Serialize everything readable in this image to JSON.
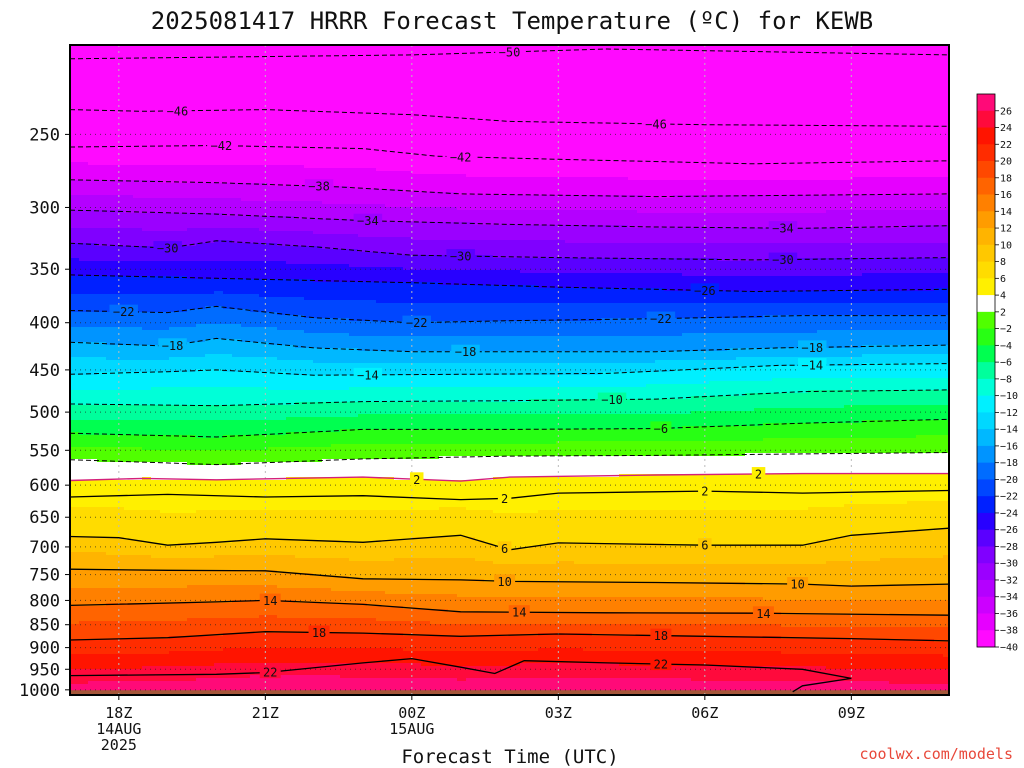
{
  "chart_data": {
    "type": "heatmap",
    "title": "2025081417 HRRR Forecast Temperature (ºC) for KEWB",
    "xlabel": "Forecast Time (UTC)",
    "ylabel": "",
    "credit": "coolwx.com/models",
    "x_ticks": [
      {
        "hour": 1,
        "line1": "18Z",
        "line2": "14AUG",
        "line3": "2025"
      },
      {
        "hour": 4,
        "line1": "21Z",
        "line2": "",
        "line3": ""
      },
      {
        "hour": 7,
        "line1": "00Z",
        "line2": "15AUG",
        "line3": ""
      },
      {
        "hour": 10,
        "line1": "03Z",
        "line2": "",
        "line3": ""
      },
      {
        "hour": 13,
        "line1": "06Z",
        "line2": "",
        "line3": ""
      },
      {
        "hour": 16,
        "line1": "09Z",
        "line2": "",
        "line3": ""
      }
    ],
    "xlim_hours": [
      0,
      18
    ],
    "y_ticks": [
      "250",
      "300",
      "350",
      "400",
      "450",
      "500",
      "550",
      "600",
      "650",
      "700",
      "750",
      "800",
      "850",
      "900",
      "950",
      "1000"
    ],
    "ylim_hPa": [
      1013,
      200
    ],
    "y_scale": "log",
    "grid": true,
    "colorbar": {
      "levels": [
        -40,
        -38,
        -36,
        -34,
        -32,
        -30,
        -28,
        -26,
        -24,
        -22,
        -20,
        -18,
        -16,
        -14,
        -12,
        -10,
        -8,
        -6,
        -4,
        -2,
        2,
        4,
        6,
        8,
        10,
        12,
        14,
        16,
        18,
        20,
        22,
        24,
        26
      ],
      "labels": [
        "26",
        "24",
        "22",
        "20",
        "18",
        "16",
        "14",
        "12",
        "10",
        "8",
        "6",
        "4",
        "2",
        "−2",
        "−4",
        "−6",
        "−8",
        "−10",
        "−12",
        "−14",
        "−16",
        "−18",
        "−20",
        "−22",
        "−24",
        "−26",
        "−28",
        "−30",
        "−32",
        "−34",
        "−36",
        "−38",
        "−40"
      ],
      "colors": [
        "#ff0aff",
        "#e600ff",
        "#cc00ff",
        "#b400ff",
        "#9b00ff",
        "#8000ff",
        "#5a00ff",
        "#2800ff",
        "#0020ff",
        "#0046ff",
        "#006cff",
        "#0094ff",
        "#00b8ff",
        "#00d8ff",
        "#00f0ff",
        "#00ffd8",
        "#00ff9c",
        "#00ff50",
        "#28ff14",
        "#50ff00",
        "#ffffff",
        "#fff000",
        "#ffdc00",
        "#ffc800",
        "#ffb400",
        "#ff9c00",
        "#ff8000",
        "#ff6400",
        "#ff4800",
        "#ff2c00",
        "#ff1400",
        "#ff0a3c",
        "#ff0a78"
      ]
    },
    "series": [
      {
        "temp": -50,
        "label": "−50",
        "points": [
          [
            0,
            207
          ],
          [
            7,
            205
          ],
          [
            11,
            202
          ],
          [
            18,
            205
          ]
        ]
      },
      {
        "temp": -46,
        "label": "−46",
        "points": [
          [
            0,
            235
          ],
          [
            1.5,
            236
          ],
          [
            4,
            235
          ],
          [
            7,
            238
          ],
          [
            9,
            242
          ],
          [
            13,
            244
          ],
          [
            18,
            245
          ]
        ]
      },
      {
        "temp": -42,
        "label": "−42",
        "points": [
          [
            0,
            258
          ],
          [
            3,
            257
          ],
          [
            6,
            259
          ],
          [
            7.5,
            264
          ],
          [
            10,
            266
          ],
          [
            14,
            269
          ],
          [
            18,
            267
          ]
        ]
      },
      {
        "temp": -38,
        "label": "−38",
        "points": [
          [
            0,
            280
          ],
          [
            3,
            282
          ],
          [
            5.5,
            285
          ],
          [
            8,
            290
          ],
          [
            12,
            292
          ],
          [
            18,
            290
          ]
        ]
      },
      {
        "temp": -34,
        "label": "−34",
        "points": [
          [
            0,
            302
          ],
          [
            3,
            305
          ],
          [
            6,
            310
          ],
          [
            9,
            313
          ],
          [
            12,
            315
          ],
          [
            15,
            316
          ],
          [
            18,
            314
          ]
        ]
      },
      {
        "temp": -30,
        "label": "−30",
        "points": [
          [
            0,
            328
          ],
          [
            2,
            332
          ],
          [
            3,
            326
          ],
          [
            5,
            331
          ],
          [
            7,
            338
          ],
          [
            10,
            340
          ],
          [
            14,
            342
          ],
          [
            18,
            340
          ]
        ]
      },
      {
        "temp": -26,
        "label": "−26",
        "points": [
          [
            0,
            355
          ],
          [
            3,
            358
          ],
          [
            7,
            362
          ],
          [
            10,
            366
          ],
          [
            14,
            370
          ],
          [
            18,
            368
          ]
        ]
      },
      {
        "temp": -22,
        "label": "−22",
        "points": [
          [
            0,
            388
          ],
          [
            2,
            390
          ],
          [
            3,
            384
          ],
          [
            5,
            395
          ],
          [
            7,
            400
          ],
          [
            9,
            398
          ],
          [
            12,
            396
          ],
          [
            15,
            393
          ],
          [
            18,
            393
          ]
        ]
      },
      {
        "temp": -18,
        "label": "−18",
        "points": [
          [
            0,
            420
          ],
          [
            2,
            424
          ],
          [
            3,
            416
          ],
          [
            5,
            426
          ],
          [
            7,
            430
          ],
          [
            10,
            430
          ],
          [
            12,
            430
          ],
          [
            14.5,
            426
          ],
          [
            18,
            423
          ]
        ]
      },
      {
        "temp": -14,
        "label": "−14",
        "points": [
          [
            0,
            455
          ],
          [
            2,
            452
          ],
          [
            3,
            450
          ],
          [
            5,
            456
          ],
          [
            8,
            455
          ],
          [
            11,
            454
          ],
          [
            14.5,
            445
          ],
          [
            18,
            443
          ]
        ]
      },
      {
        "temp": -10,
        "label": "−10",
        "points": [
          [
            0,
            490
          ],
          [
            3,
            492
          ],
          [
            6,
            487
          ],
          [
            9,
            486
          ],
          [
            12,
            484
          ],
          [
            15,
            475
          ],
          [
            18,
            473
          ]
        ]
      },
      {
        "temp": -6,
        "label": "−6",
        "points": [
          [
            0,
            527
          ],
          [
            3,
            532
          ],
          [
            6,
            522
          ],
          [
            9,
            522
          ],
          [
            12,
            521
          ],
          [
            15,
            514
          ],
          [
            18,
            509
          ]
        ]
      },
      {
        "temp": -2,
        "label": "−2",
        "points": [
          [
            0,
            563
          ],
          [
            3,
            570
          ],
          [
            6,
            562
          ],
          [
            9,
            558
          ],
          [
            12,
            557
          ],
          [
            15,
            555
          ],
          [
            18,
            553
          ]
        ]
      },
      {
        "temp": 2,
        "label": "2",
        "points": [
          [
            0,
            593
          ],
          [
            1.5,
            590
          ],
          [
            3,
            592
          ],
          [
            6,
            588
          ],
          [
            8,
            594
          ],
          [
            9,
            588
          ],
          [
            12,
            585
          ],
          [
            15,
            583
          ],
          [
            18,
            583
          ]
        ]
      },
      {
        "temp": 2,
        "label": "2",
        "points": [
          [
            0,
            618
          ],
          [
            2,
            614
          ],
          [
            4,
            618
          ],
          [
            6,
            616
          ],
          [
            8,
            622
          ],
          [
            9,
            620
          ],
          [
            10,
            612
          ],
          [
            13,
            609
          ],
          [
            15,
            612
          ],
          [
            18,
            608
          ]
        ]
      },
      {
        "temp": 6,
        "label": "6",
        "points": [
          [
            0,
            682
          ],
          [
            1,
            684
          ],
          [
            2,
            697
          ],
          [
            3,
            692
          ],
          [
            4,
            686
          ],
          [
            6,
            692
          ],
          [
            8,
            680
          ],
          [
            9,
            705
          ],
          [
            10,
            693
          ],
          [
            13,
            697
          ],
          [
            15,
            697
          ],
          [
            16,
            680
          ],
          [
            18,
            668
          ]
        ]
      },
      {
        "temp": 10,
        "label": "10",
        "points": [
          [
            0,
            740
          ],
          [
            2,
            742
          ],
          [
            4,
            743
          ],
          [
            6,
            758
          ],
          [
            8,
            760
          ],
          [
            9,
            763
          ],
          [
            12,
            765
          ],
          [
            15,
            768
          ],
          [
            16,
            772
          ],
          [
            18,
            768
          ]
        ]
      },
      {
        "temp": 14,
        "label": "14",
        "points": [
          [
            0,
            810
          ],
          [
            3,
            803
          ],
          [
            4,
            800
          ],
          [
            6,
            808
          ],
          [
            8,
            823
          ],
          [
            11,
            825
          ],
          [
            14,
            826
          ],
          [
            18,
            830
          ]
        ]
      },
      {
        "temp": 18,
        "label": "18",
        "points": [
          [
            0,
            883
          ],
          [
            2,
            878
          ],
          [
            4,
            865
          ],
          [
            6,
            868
          ],
          [
            8,
            875
          ],
          [
            10,
            870
          ],
          [
            13,
            875
          ],
          [
            16,
            880
          ],
          [
            18,
            885
          ]
        ]
      },
      {
        "temp": 22,
        "label": "22",
        "points": [
          [
            0,
            965
          ],
          [
            3,
            962
          ],
          [
            4,
            958
          ],
          [
            6,
            935
          ],
          [
            7,
            925
          ],
          [
            8,
            945
          ],
          [
            8.7,
            960
          ],
          [
            9.3,
            930
          ],
          [
            11,
            935
          ],
          [
            13,
            940
          ],
          [
            15,
            950
          ],
          [
            16,
            972
          ],
          [
            15,
            990
          ],
          [
            14.8,
            1005
          ]
        ]
      }
    ],
    "label_positions": [
      {
        "i": 0,
        "x": 9.0
      },
      {
        "i": 1,
        "x": 2.2
      },
      {
        "i": 1,
        "x": 12.0
      },
      {
        "i": 2,
        "x": 3.1
      },
      {
        "i": 2,
        "x": 8.0
      },
      {
        "i": 3,
        "x": 5.1
      },
      {
        "i": 4,
        "x": 6.1
      },
      {
        "i": 4,
        "x": 14.6
      },
      {
        "i": 5,
        "x": 2.0
      },
      {
        "i": 5,
        "x": 8.0
      },
      {
        "i": 5,
        "x": 14.6
      },
      {
        "i": 6,
        "x": 13.0
      },
      {
        "i": 7,
        "x": 1.1
      },
      {
        "i": 7,
        "x": 7.1
      },
      {
        "i": 7,
        "x": 12.1
      },
      {
        "i": 8,
        "x": 2.1
      },
      {
        "i": 8,
        "x": 8.1
      },
      {
        "i": 8,
        "x": 15.2
      },
      {
        "i": 9,
        "x": 6.1
      },
      {
        "i": 9,
        "x": 15.2
      },
      {
        "i": 10,
        "x": 11.1
      },
      {
        "i": 11,
        "x": 12.1
      },
      {
        "i": 13,
        "x": 7.1
      },
      {
        "i": 13,
        "x": 14.1
      },
      {
        "i": 14,
        "x": 8.9
      },
      {
        "i": 14,
        "x": 13.0
      },
      {
        "i": 15,
        "x": 8.9
      },
      {
        "i": 15,
        "x": 13.0
      },
      {
        "i": 16,
        "x": 8.9
      },
      {
        "i": 16,
        "x": 14.9
      },
      {
        "i": 17,
        "x": 4.1
      },
      {
        "i": 17,
        "x": 9.2
      },
      {
        "i": 17,
        "x": 14.2
      },
      {
        "i": 18,
        "x": 5.1
      },
      {
        "i": 18,
        "x": 12.1
      },
      {
        "i": 19,
        "x": 4.1
      },
      {
        "i": 19,
        "x": 12.1
      }
    ],
    "ground_pressure_hPa": 1001
  }
}
